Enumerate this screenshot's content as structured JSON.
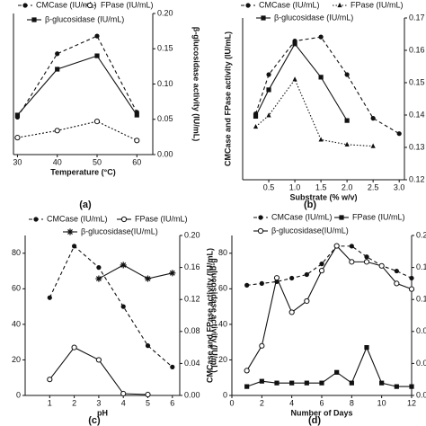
{
  "chart_data": [
    {
      "type": "line",
      "panel": "(a)",
      "xlabel": "Temperature (°C)",
      "y2label": "β-glucosidase activity (IU/mL)",
      "x": [
        30,
        40,
        50,
        60
      ],
      "xlim": [
        29,
        64
      ],
      "xticks": [
        30,
        40,
        50,
        60
      ],
      "ylim": [
        0,
        20
      ],
      "y2lim": [
        0,
        0.2
      ],
      "y2ticks": [
        {
          "value": 0,
          "label": "0.00"
        },
        0.05,
        {
          "value": 0.1,
          "label": "0.10"
        },
        0.15,
        {
          "value": 0.2,
          "label": "0.20"
        }
      ],
      "series": [
        {
          "name": "CMCase (IU/mL)",
          "color": "#111111",
          "marker": "dot",
          "dash": "4,3",
          "values": [
            5.3,
            14.3,
            16.8,
            6.0
          ]
        },
        {
          "name": "FPase (IU/mL)",
          "color": "#111111",
          "marker": "circle-open",
          "dash": "2,2",
          "values": [
            2.4,
            3.4,
            4.7,
            2.0
          ]
        },
        {
          "name": "β-glucosidase (IU/mL)",
          "color": "#111111",
          "marker": "square",
          "dash": "none",
          "axis": "y2",
          "values": [
            0.056,
            0.121,
            0.14,
            0.056
          ]
        }
      ]
    },
    {
      "type": "line",
      "panel": "(b)",
      "xlabel": "Substrate (% w/v)",
      "ylabel": "CMCase and FPase activity (IU/mL)",
      "x": [
        0.25,
        0.5,
        1.0,
        1.5,
        2.0,
        2.5,
        3.0
      ],
      "xlim": [
        0,
        3.1
      ],
      "xticks": [
        0.5,
        {
          "value": 1,
          "label": "1.0"
        },
        1.5,
        {
          "value": 2,
          "label": "2.0"
        },
        2.5,
        {
          "value": 3,
          "label": "3.0"
        }
      ],
      "ylim": [
        0,
        40
      ],
      "y2lim": [
        0.12,
        0.17
      ],
      "y2ticks": [
        0.12,
        0.13,
        0.14,
        0.15,
        0.16,
        0.17
      ],
      "series": [
        {
          "name": "CMCase (IU/mL)",
          "color": "#111111",
          "marker": "dot",
          "dash": "4,3",
          "values": [
            16.3,
            26.0,
            34.3,
            35.3,
            26.0,
            15.2,
            11.4
          ]
        },
        {
          "name": "FPase (IU/mL)",
          "color": "#111111",
          "marker": "triangle",
          "dash": "1.5,2",
          "values": [
            13.1,
            15.9,
            24.8,
            9.9,
            8.7,
            8.3,
            null
          ]
        },
        {
          "name": "β-glucosidase (IU/mL)",
          "color": "#111111",
          "marker": "square",
          "dash": "none",
          "axis": "y2",
          "values": [
            0.1396,
            0.1478,
            0.162,
            0.1517,
            0.1383,
            null,
            null
          ]
        }
      ]
    },
    {
      "type": "line",
      "panel": "(c)",
      "xlabel": "pH",
      "y2label": "β-glucosidase activity (IU/mL)",
      "x": [
        1,
        2,
        3,
        4,
        5,
        6
      ],
      "xlim": [
        0,
        6.3
      ],
      "xticks": [
        1,
        2,
        3,
        4,
        5,
        6
      ],
      "ylim": [
        0,
        90
      ],
      "yticks": [
        0,
        20,
        40,
        60,
        80
      ],
      "y2lim": [
        0,
        0.2
      ],
      "y2ticks": [
        {
          "value": 0,
          "label": "0.00"
        },
        0.04,
        0.08,
        0.12,
        0.16,
        {
          "value": 0.2,
          "label": "0.20"
        }
      ],
      "series": [
        {
          "name": "CMCase (IU/mL)",
          "color": "#111111",
          "marker": "dot",
          "dash": "4,3",
          "values": [
            55,
            84,
            72,
            50,
            28,
            16
          ]
        },
        {
          "name": "FPase (IU/mL)",
          "color": "#111111",
          "marker": "circle-open",
          "dash": "none",
          "values": [
            9,
            27,
            20,
            1,
            0.5,
            null
          ]
        },
        {
          "name": "β-glucosidase(IU/mL)",
          "color": "#111111",
          "marker": "asterisk",
          "dash": "none",
          "axis": "y2",
          "values": [
            null,
            null,
            0.146,
            0.163,
            0.146,
            0.153
          ]
        }
      ]
    },
    {
      "type": "line",
      "panel": "(d)",
      "xlabel": "Number of Days",
      "ylabel": "CMCase and FPase activity (IU/mL)",
      "x": [
        1,
        2,
        3,
        4,
        5,
        6,
        7,
        8,
        9,
        10,
        11,
        12
      ],
      "xlim": [
        0,
        12
      ],
      "xticks": [
        0,
        2,
        4,
        6,
        8,
        10,
        12
      ],
      "ylim": [
        0,
        90
      ],
      "yticks": [
        0,
        20,
        40,
        60,
        80
      ],
      "y2lim": [
        0,
        0.2
      ],
      "y2ticks": [
        {
          "value": 0,
          "label": "0.00"
        },
        0.04,
        0.08,
        0.12,
        0.16,
        {
          "value": 0.2,
          "label": "0.20"
        }
      ],
      "series": [
        {
          "name": "CMCase (IU/mL)",
          "color": "#111111",
          "marker": "dot",
          "dash": "4,3",
          "values": [
            62,
            63,
            64,
            66,
            68,
            74,
            84,
            84,
            78,
            73,
            70,
            66
          ]
        },
        {
          "name": "FPase (IU/mL)",
          "color": "#111111",
          "marker": "square",
          "dash": "none",
          "values": [
            5,
            8,
            7,
            7,
            7,
            7,
            13,
            7,
            27,
            7,
            5,
            5
          ]
        },
        {
          "name": "β-glucosidase(IU/mL)",
          "color": "#111111",
          "marker": "circle-open",
          "dash": "none",
          "axis": "y2",
          "values": [
            0.031,
            0.062,
            0.147,
            0.104,
            0.118,
            0.156,
            0.187,
            0.167,
            0.167,
            0.162,
            0.14,
            0.133
          ]
        }
      ]
    }
  ]
}
